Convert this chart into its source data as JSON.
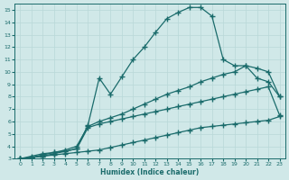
{
  "xlabel": "Humidex (Indice chaleur)",
  "xlim": [
    -0.5,
    23.5
  ],
  "ylim": [
    3,
    15.5
  ],
  "xticks": [
    0,
    1,
    2,
    3,
    4,
    5,
    6,
    7,
    8,
    9,
    10,
    11,
    12,
    13,
    14,
    15,
    16,
    17,
    18,
    19,
    20,
    21,
    22,
    23
  ],
  "yticks": [
    3,
    4,
    5,
    6,
    7,
    8,
    9,
    10,
    11,
    12,
    13,
    14,
    15
  ],
  "bg_color": "#d0e8e8",
  "line_color": "#1a6b6b",
  "grid_color": "#b8d8d8",
  "lines": [
    {
      "x": [
        0,
        1,
        2,
        3,
        4,
        5,
        6,
        7,
        8,
        9,
        10,
        11,
        12,
        13,
        14,
        15,
        16,
        17,
        18,
        19,
        20,
        21,
        22,
        23
      ],
      "y": [
        3.0,
        3.1,
        3.2,
        3.3,
        3.4,
        3.5,
        3.6,
        3.7,
        3.9,
        4.1,
        4.3,
        4.5,
        4.7,
        4.9,
        5.1,
        5.3,
        5.5,
        5.6,
        5.7,
        5.8,
        5.9,
        6.0,
        6.1,
        6.4
      ]
    },
    {
      "x": [
        0,
        1,
        2,
        3,
        4,
        5,
        6,
        7,
        8,
        9,
        10,
        11,
        12,
        13,
        14,
        15,
        16,
        17,
        18,
        19,
        20,
        21,
        22,
        23
      ],
      "y": [
        3.0,
        3.1,
        3.2,
        3.4,
        3.6,
        3.8,
        5.5,
        5.8,
        6.0,
        6.2,
        6.4,
        6.6,
        6.8,
        7.0,
        7.2,
        7.4,
        7.6,
        7.8,
        8.0,
        8.2,
        8.4,
        8.6,
        8.8,
        6.5
      ]
    },
    {
      "x": [
        0,
        1,
        2,
        3,
        4,
        5,
        6,
        7,
        8,
        9,
        10,
        11,
        12,
        13,
        14,
        15,
        16,
        17,
        18,
        19,
        20,
        21,
        22,
        23
      ],
      "y": [
        3.0,
        3.1,
        3.3,
        3.5,
        3.7,
        4.0,
        5.6,
        6.0,
        6.3,
        6.6,
        7.0,
        7.4,
        7.8,
        8.2,
        8.5,
        8.8,
        9.2,
        9.5,
        9.8,
        10.0,
        10.5,
        10.3,
        10.0,
        8.0
      ]
    },
    {
      "x": [
        0,
        1,
        2,
        3,
        4,
        5,
        6,
        7,
        8,
        9,
        10,
        11,
        12,
        13,
        14,
        15,
        16,
        17,
        18,
        19,
        20,
        21,
        22,
        23
      ],
      "y": [
        3.0,
        3.2,
        3.4,
        3.5,
        3.6,
        3.8,
        5.7,
        9.5,
        8.2,
        9.6,
        11.0,
        12.0,
        13.2,
        14.3,
        14.8,
        15.2,
        15.2,
        14.5,
        11.0,
        10.5,
        10.5,
        9.5,
        9.2,
        8.0
      ]
    }
  ],
  "marker": "+",
  "markersize": 4,
  "markeredgewidth": 1.0,
  "linewidth": 0.9
}
